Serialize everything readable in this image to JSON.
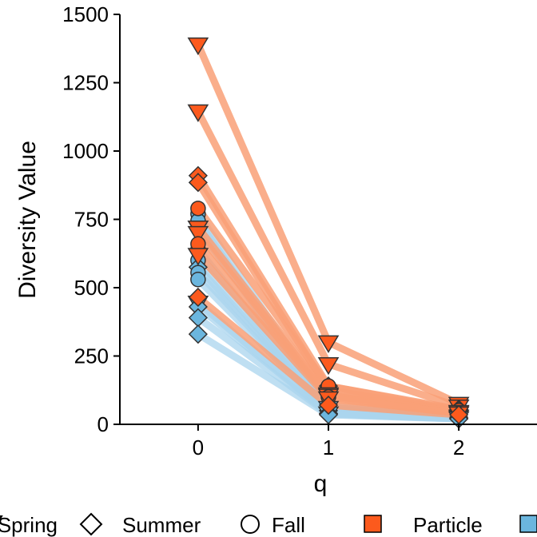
{
  "chart_data": {
    "type": "line",
    "xlabel": "q",
    "ylabel": "Diversity Value",
    "x": [
      0,
      1,
      2
    ],
    "xlim": [
      -0.6,
      2.6
    ],
    "ylim": [
      0,
      1500
    ],
    "yticks": [
      0,
      250,
      500,
      750,
      1000,
      1250,
      1500
    ],
    "grid": false,
    "legend_position": "bottom",
    "legend": {
      "shape_entries": [
        {
          "label": "Spring",
          "shape": "triangle-down"
        },
        {
          "label": "Summer",
          "shape": "diamond"
        },
        {
          "label": "Fall",
          "shape": "circle"
        }
      ],
      "color_entries": [
        {
          "label": "Particle",
          "color": "#fc5a1d"
        },
        {
          "label": "",
          "color": "#6bb6de"
        }
      ]
    },
    "colors": {
      "Particle": "#fc5a1d",
      "Particle_line": "#f9a077",
      "Other": "#6bb6de",
      "Other_line": "#a9d4ee"
    },
    "series": [
      {
        "group": "Particle",
        "shape": "triangle-down",
        "values": [
          1390,
          300,
          75
        ]
      },
      {
        "group": "Particle",
        "shape": "triangle-down",
        "values": [
          1145,
          220,
          65
        ]
      },
      {
        "group": "Particle",
        "shape": "diamond",
        "values": [
          910,
          140,
          55
        ]
      },
      {
        "group": "Particle",
        "shape": "diamond",
        "values": [
          885,
          125,
          50
        ]
      },
      {
        "group": "Particle",
        "shape": "circle",
        "values": [
          790,
          140,
          50
        ]
      },
      {
        "group": "Particle",
        "shape": "triangle-down",
        "values": [
          720,
          110,
          45
        ]
      },
      {
        "group": "Particle",
        "shape": "triangle-down",
        "values": [
          700,
          105,
          45
        ]
      },
      {
        "group": "Particle",
        "shape": "circle",
        "values": [
          660,
          100,
          40
        ]
      },
      {
        "group": "Particle",
        "shape": "triangle-down",
        "values": [
          620,
          95,
          40
        ]
      },
      {
        "group": "Particle",
        "shape": "diamond",
        "values": [
          465,
          70,
          35
        ]
      },
      {
        "group": "Other",
        "shape": "circle",
        "values": [
          770,
          65,
          30
        ]
      },
      {
        "group": "Other",
        "shape": "circle",
        "values": [
          745,
          60,
          30
        ]
      },
      {
        "group": "Other",
        "shape": "triangle-down",
        "values": [
          720,
          60,
          28
        ]
      },
      {
        "group": "Other",
        "shape": "circle",
        "values": [
          640,
          55,
          28
        ]
      },
      {
        "group": "Other",
        "shape": "circle",
        "values": [
          600,
          55,
          27
        ]
      },
      {
        "group": "Other",
        "shape": "diamond",
        "values": [
          575,
          50,
          26
        ]
      },
      {
        "group": "Other",
        "shape": "circle",
        "values": [
          555,
          48,
          25
        ]
      },
      {
        "group": "Other",
        "shape": "circle",
        "values": [
          530,
          45,
          25
        ]
      },
      {
        "group": "Other",
        "shape": "triangle-down",
        "values": [
          445,
          40,
          22
        ]
      },
      {
        "group": "Other",
        "shape": "diamond",
        "values": [
          430,
          40,
          22
        ]
      },
      {
        "group": "Other",
        "shape": "diamond",
        "values": [
          390,
          38,
          20
        ]
      },
      {
        "group": "Other",
        "shape": "diamond",
        "values": [
          330,
          35,
          20
        ]
      }
    ]
  }
}
